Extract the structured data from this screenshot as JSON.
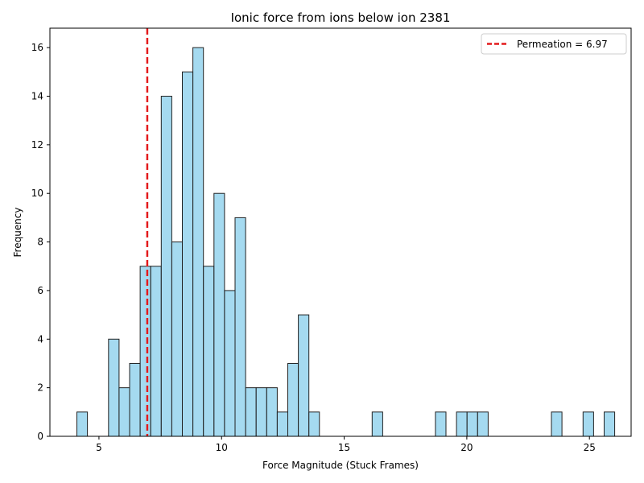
{
  "chart_data": {
    "type": "bar",
    "subtype": "histogram",
    "title": "Ionic force from ions below ion 2381",
    "xlabel": "Force Magnitude (Stuck Frames)",
    "ylabel": "Frequency",
    "xlim": [
      3.0,
      26.7
    ],
    "ylim": [
      0,
      16.8
    ],
    "xticks": [
      5,
      10,
      15,
      20,
      25
    ],
    "yticks": [
      0,
      2,
      4,
      6,
      8,
      10,
      12,
      14,
      16
    ],
    "bin_start": 4.1,
    "bin_width": 0.43,
    "counts": [
      1,
      0,
      0,
      4,
      2,
      3,
      7,
      7,
      14,
      8,
      15,
      16,
      7,
      10,
      6,
      9,
      2,
      2,
      2,
      1,
      3,
      5,
      1,
      0,
      0,
      0,
      0,
      0,
      1,
      0,
      0,
      0,
      0,
      0,
      1,
      0,
      1,
      1,
      1,
      0,
      0,
      0,
      0,
      0,
      0,
      1,
      0,
      0,
      1,
      0,
      1
    ],
    "bar_color": "#87CEEB",
    "bar_edge_color": "#222222",
    "grid": false,
    "legend_position": "top-right",
    "reference_line": {
      "x": 6.97,
      "label": "Permeation = 6.97",
      "color": "#e31a1c",
      "style": "dashed"
    }
  }
}
